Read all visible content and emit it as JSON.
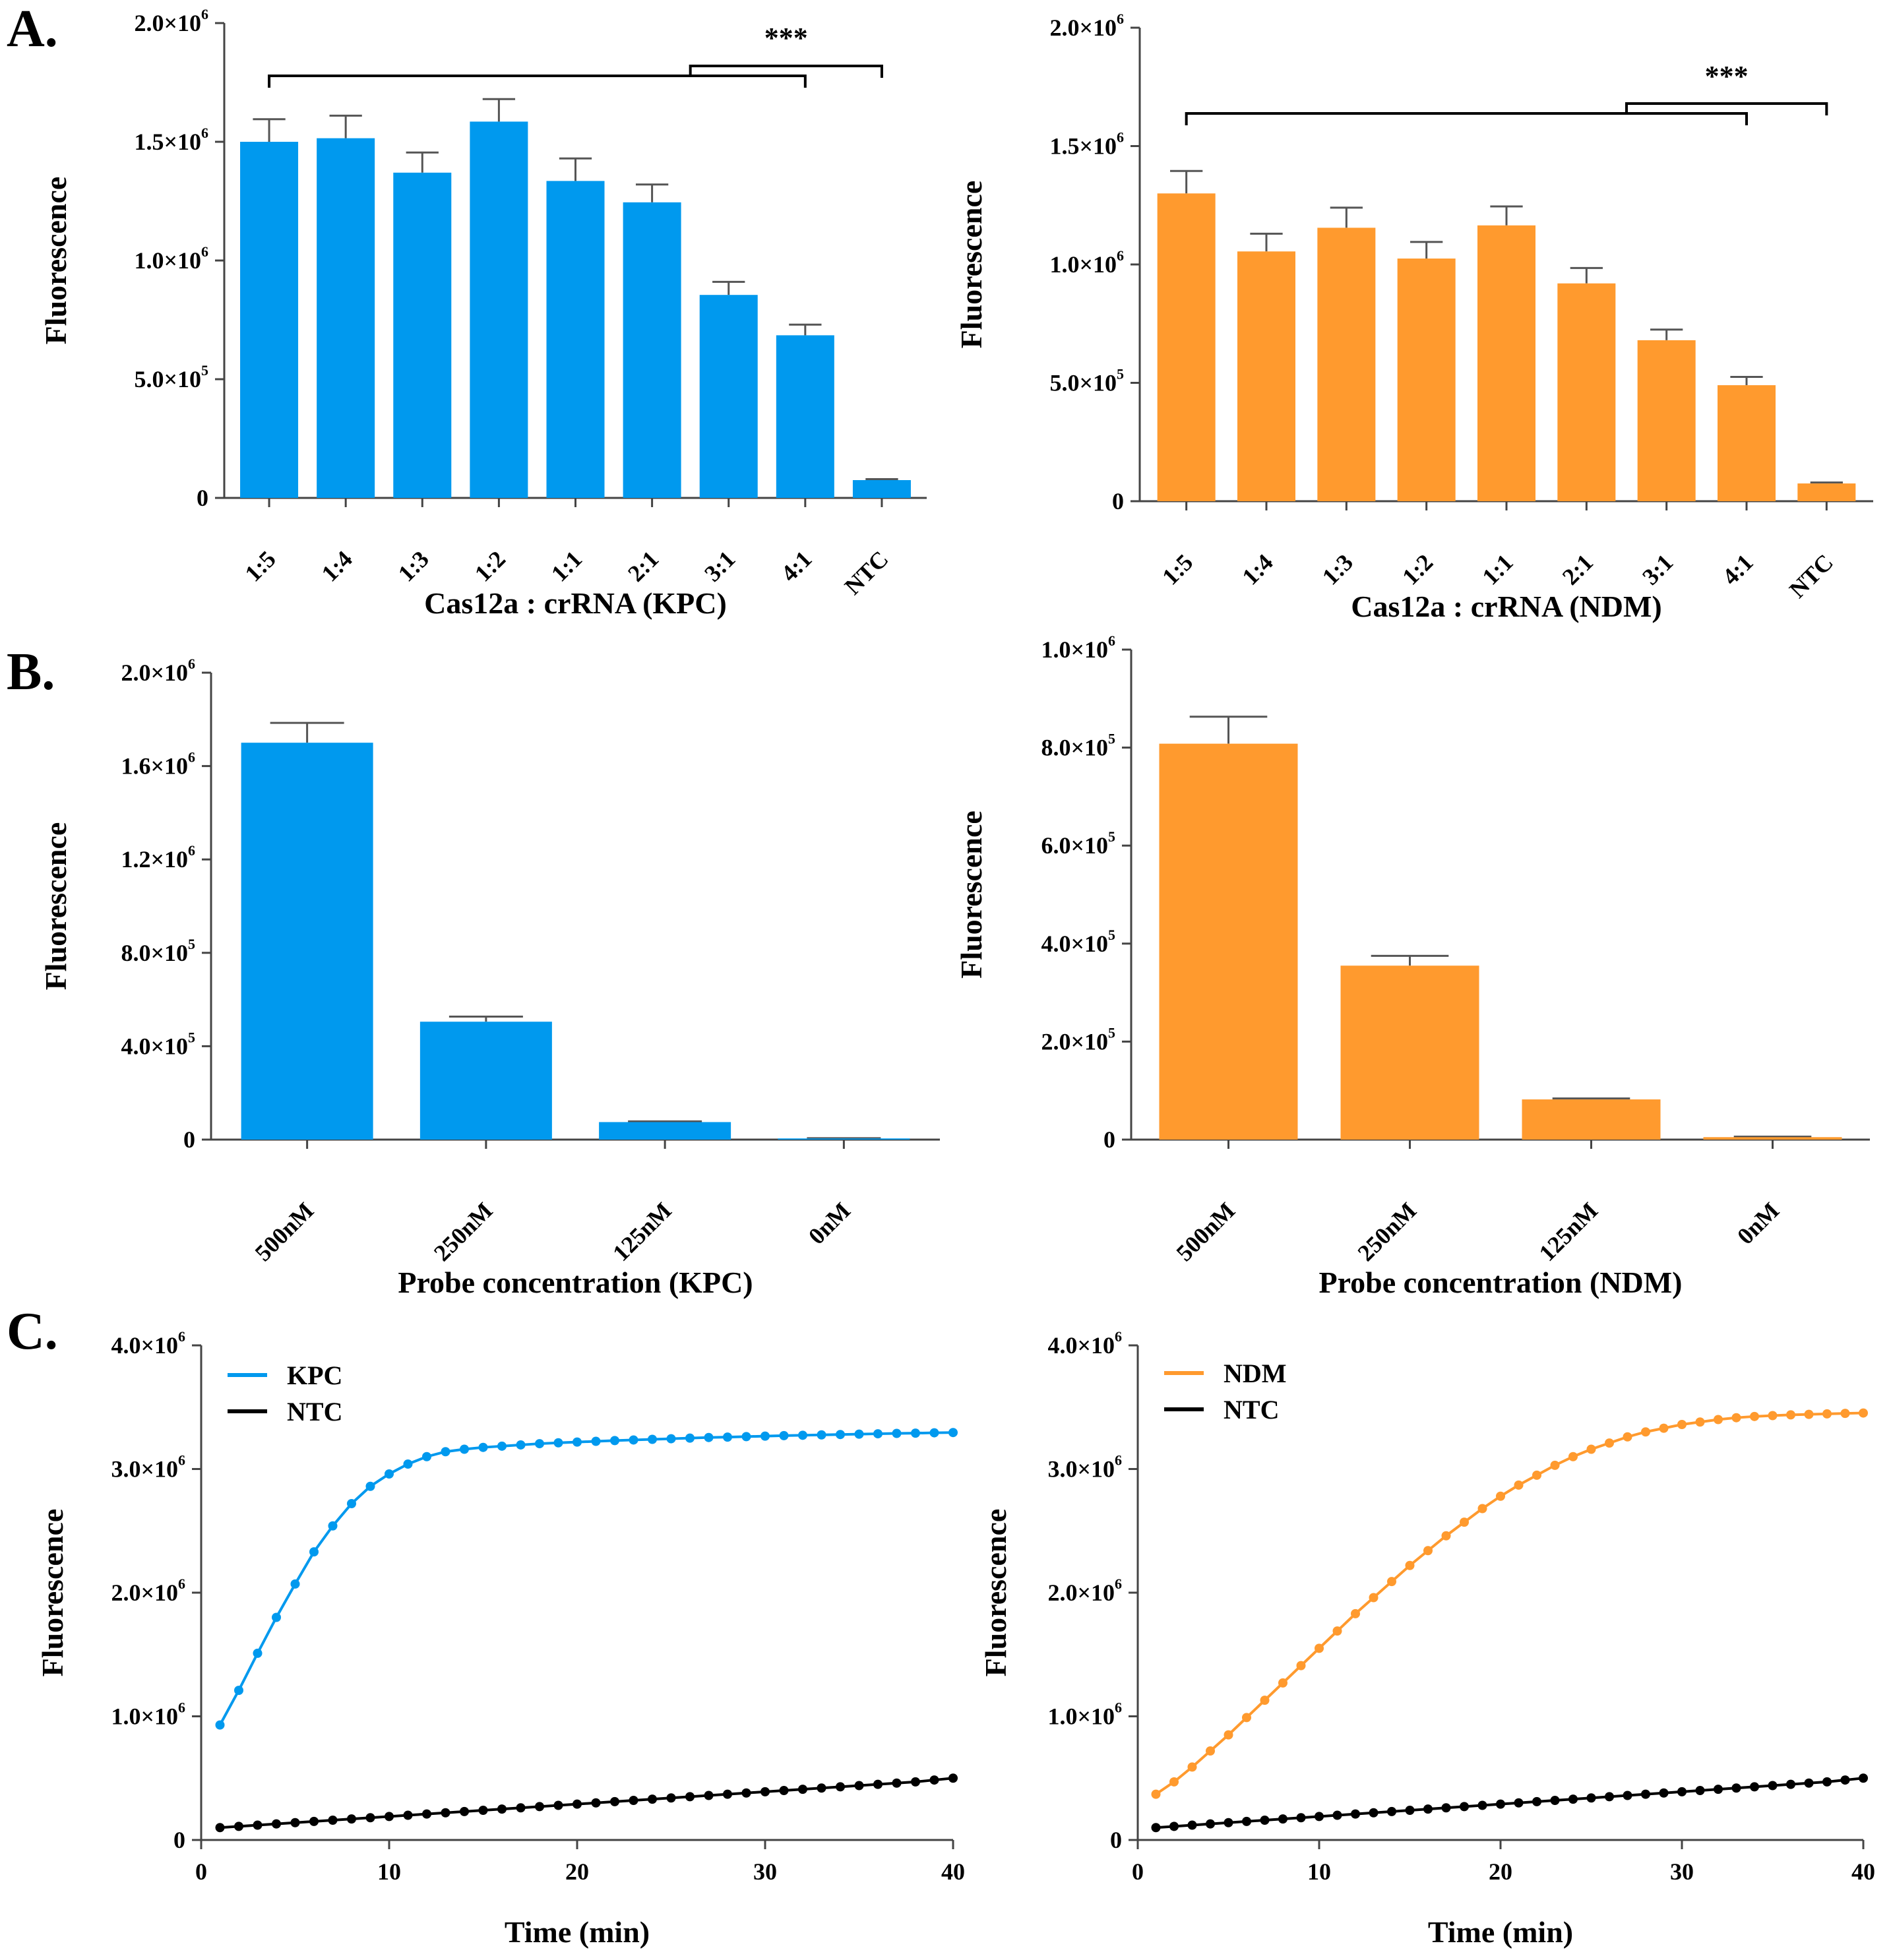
{
  "colors": {
    "blue": "#0099ee",
    "orange": "#ff9a2e",
    "black": "#000000"
  },
  "panel_labels": [
    "A.",
    "B.",
    "C."
  ],
  "chart_data": [
    {
      "id": "A-left",
      "type": "bar",
      "panel": "A.",
      "categories": [
        "1:5",
        "1:4",
        "1:3",
        "1:2",
        "1:1",
        "2:1",
        "3:1",
        "4:1",
        "NTC"
      ],
      "values": [
        1500000,
        1515000,
        1370000,
        1585000,
        1335000,
        1245000,
        855000,
        685000,
        75000
      ],
      "errors": [
        95000,
        95000,
        85000,
        95000,
        95000,
        75000,
        55000,
        45000,
        4000
      ],
      "xlabel": "Cas12a : crRNA (KPC)",
      "ylabel": "Fluorescence",
      "ylim": [
        0,
        2000000
      ],
      "yticks": [
        {
          "v": 0,
          "label": "0"
        },
        {
          "v": 500000,
          "label": "5.0×10",
          "exp": "5"
        },
        {
          "v": 1000000,
          "label": "1.0×10",
          "exp": "6"
        },
        {
          "v": 1500000,
          "label": "1.5×10",
          "exp": "6"
        },
        {
          "v": 2000000,
          "label": "2.0×10",
          "exp": "6"
        }
      ],
      "color": "#0099ee",
      "significance": "***"
    },
    {
      "id": "A-right",
      "type": "bar",
      "panel": "",
      "categories": [
        "1:5",
        "1:4",
        "1:3",
        "1:2",
        "1:1",
        "2:1",
        "3:1",
        "4:1",
        "NTC"
      ],
      "values": [
        1300000,
        1055000,
        1155000,
        1025000,
        1165000,
        920000,
        680000,
        490000,
        75000
      ],
      "errors": [
        95000,
        75000,
        85000,
        70000,
        80000,
        65000,
        45000,
        35000,
        4000
      ],
      "xlabel": "Cas12a : crRNA (NDM)",
      "ylabel": "Fluorescence",
      "ylim": [
        0,
        2000000
      ],
      "yticks": [
        {
          "v": 0,
          "label": "0"
        },
        {
          "v": 500000,
          "label": "5.0×10",
          "exp": "5"
        },
        {
          "v": 1000000,
          "label": "1.0×10",
          "exp": "6"
        },
        {
          "v": 1500000,
          "label": "1.5×10",
          "exp": "6"
        },
        {
          "v": 2000000,
          "label": "2.0×10",
          "exp": "6"
        }
      ],
      "color": "#ff9a2e",
      "significance": "***"
    },
    {
      "id": "B-left",
      "type": "bar",
      "panel": "B.",
      "categories": [
        "500nM",
        "250nM",
        "125nM",
        "0nM"
      ],
      "values": [
        1700000,
        505000,
        75000,
        5000
      ],
      "errors": [
        85000,
        22000,
        3000,
        1000
      ],
      "xlabel": "Probe concentration (KPC)",
      "ylabel": "Fluorescence",
      "ylim": [
        0,
        2000000
      ],
      "yticks": [
        {
          "v": 0,
          "label": "0"
        },
        {
          "v": 400000,
          "label": "4.0×10",
          "exp": "5"
        },
        {
          "v": 800000,
          "label": "8.0×10",
          "exp": "5"
        },
        {
          "v": 1200000,
          "label": "1.2×10",
          "exp": "6"
        },
        {
          "v": 1600000,
          "label": "1.6×10",
          "exp": "6"
        },
        {
          "v": 2000000,
          "label": "2.0×10",
          "exp": "6"
        }
      ],
      "color": "#0099ee"
    },
    {
      "id": "B-right",
      "type": "bar",
      "panel": "",
      "categories": [
        "500nM",
        "250nM",
        "125nM",
        "0nM"
      ],
      "values": [
        808000,
        355000,
        82000,
        5000
      ],
      "errors": [
        55000,
        20000,
        2000,
        1000
      ],
      "xlabel": "Probe concentration (NDM)",
      "ylabel": "Fluorescence",
      "ylim": [
        0,
        1000000
      ],
      "yticks": [
        {
          "v": 0,
          "label": "0"
        },
        {
          "v": 200000,
          "label": "2.0×10",
          "exp": "5"
        },
        {
          "v": 400000,
          "label": "4.0×10",
          "exp": "5"
        },
        {
          "v": 600000,
          "label": "6.0×10",
          "exp": "5"
        },
        {
          "v": 800000,
          "label": "8.0×10",
          "exp": "5"
        },
        {
          "v": 1000000,
          "label": "1.0×10",
          "exp": "6"
        }
      ],
      "color": "#ff9a2e"
    },
    {
      "id": "C-left",
      "type": "line",
      "panel": "C.",
      "x": [
        1,
        2,
        3,
        4,
        5,
        6,
        7,
        8,
        9,
        10,
        11,
        12,
        13,
        14,
        15,
        16,
        17,
        18,
        19,
        20,
        21,
        22,
        23,
        24,
        25,
        26,
        27,
        28,
        29,
        30,
        31,
        32,
        33,
        34,
        35,
        36,
        37,
        38,
        39,
        40
      ],
      "series": [
        {
          "name": "KPC",
          "color": "#0099ee",
          "values": [
            930000,
            1210000,
            1510000,
            1800000,
            2070000,
            2330000,
            2540000,
            2720000,
            2860000,
            2960000,
            3040000,
            3100000,
            3140000,
            3160000,
            3175000,
            3185000,
            3195000,
            3205000,
            3212000,
            3218000,
            3224000,
            3230000,
            3235000,
            3240000,
            3245000,
            3250000,
            3255000,
            3258000,
            3262000,
            3266000,
            3270000,
            3273000,
            3276000,
            3279000,
            3282000,
            3285000,
            3288000,
            3290000,
            3293000,
            3295000
          ]
        },
        {
          "name": "NTC",
          "color": "#000000",
          "values": [
            100000,
            110000,
            120000,
            130000,
            140000,
            150000,
            160000,
            170000,
            180000,
            190000,
            200000,
            210000,
            220000,
            230000,
            240000,
            250000,
            260000,
            270000,
            280000,
            290000,
            300000,
            310000,
            320000,
            330000,
            340000,
            350000,
            360000,
            370000,
            380000,
            390000,
            400000,
            410000,
            420000,
            430000,
            440000,
            450000,
            460000,
            470000,
            485000,
            500000
          ]
        }
      ],
      "xlabel": "Time (min)",
      "ylabel": "Fluorescence",
      "xlim": [
        0,
        40
      ],
      "ylim": [
        0,
        4000000
      ],
      "xticks": [
        0,
        10,
        20,
        30,
        40
      ],
      "yticks": [
        {
          "v": 0,
          "label": "0"
        },
        {
          "v": 1000000,
          "label": "1.0×10",
          "exp": "6"
        },
        {
          "v": 2000000,
          "label": "2.0×10",
          "exp": "6"
        },
        {
          "v": 3000000,
          "label": "3.0×10",
          "exp": "6"
        },
        {
          "v": 4000000,
          "label": "4.0×10",
          "exp": "6"
        }
      ],
      "legend": "top-left"
    },
    {
      "id": "C-right",
      "type": "line",
      "panel": "",
      "x": [
        1,
        2,
        3,
        4,
        5,
        6,
        7,
        8,
        9,
        10,
        11,
        12,
        13,
        14,
        15,
        16,
        17,
        18,
        19,
        20,
        21,
        22,
        23,
        24,
        25,
        26,
        27,
        28,
        29,
        30,
        31,
        32,
        33,
        34,
        35,
        36,
        37,
        38,
        39,
        40
      ],
      "series": [
        {
          "name": "NDM",
          "color": "#ff9a2e",
          "values": [
            370000,
            470000,
            590000,
            720000,
            850000,
            990000,
            1130000,
            1270000,
            1410000,
            1550000,
            1690000,
            1830000,
            1960000,
            2090000,
            2220000,
            2340000,
            2460000,
            2570000,
            2680000,
            2780000,
            2870000,
            2950000,
            3030000,
            3100000,
            3160000,
            3210000,
            3260000,
            3300000,
            3330000,
            3360000,
            3380000,
            3400000,
            3415000,
            3425000,
            3432000,
            3438000,
            3442000,
            3446000,
            3450000,
            3453000
          ]
        },
        {
          "name": "NTC",
          "color": "#000000",
          "values": [
            100000,
            110000,
            120000,
            130000,
            140000,
            150000,
            160000,
            170000,
            180000,
            190000,
            200000,
            210000,
            220000,
            230000,
            240000,
            250000,
            260000,
            270000,
            280000,
            290000,
            300000,
            310000,
            320000,
            330000,
            340000,
            350000,
            360000,
            370000,
            380000,
            390000,
            400000,
            410000,
            420000,
            430000,
            440000,
            450000,
            460000,
            470000,
            485000,
            500000
          ]
        }
      ],
      "xlabel": "Time (min)",
      "ylabel": "Fluorescence",
      "xlim": [
        0,
        40
      ],
      "ylim": [
        0,
        4000000
      ],
      "xticks": [
        0,
        10,
        20,
        30,
        40
      ],
      "yticks": [
        {
          "v": 0,
          "label": "0"
        },
        {
          "v": 1000000,
          "label": "1.0×10",
          "exp": "6"
        },
        {
          "v": 2000000,
          "label": "2.0×10",
          "exp": "6"
        },
        {
          "v": 3000000,
          "label": "3.0×10",
          "exp": "6"
        },
        {
          "v": 4000000,
          "label": "4.0×10",
          "exp": "6"
        }
      ],
      "legend": "top-left"
    }
  ]
}
